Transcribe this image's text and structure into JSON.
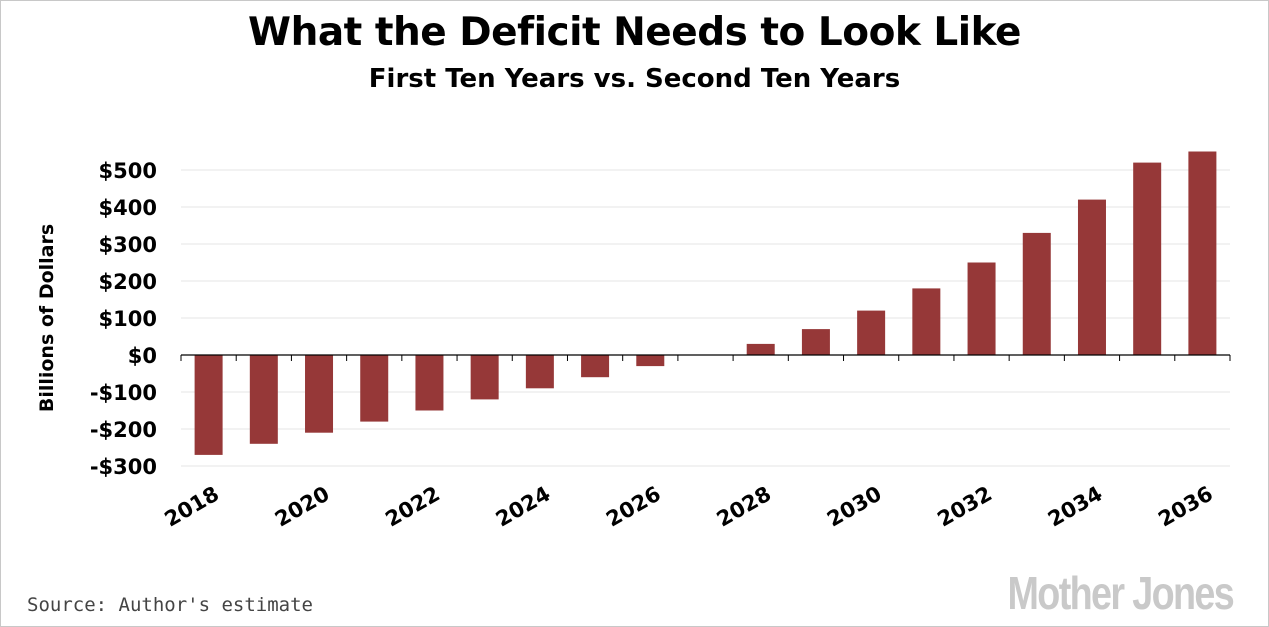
{
  "chart_data": {
    "type": "bar",
    "title": "What the Deficit Needs to Look Like",
    "subtitle": "First Ten Years vs. Second Ten Years",
    "xlabel": "",
    "ylabel": "Billions of Dollars",
    "ylim": [
      -300,
      550
    ],
    "yticks": [
      500,
      400,
      300,
      200,
      100,
      0,
      -100,
      -200,
      -300
    ],
    "ytick_labels": [
      "$500",
      "$400",
      "$300",
      "$200",
      "$100",
      "$0",
      "-$100",
      "-$200",
      "-$300"
    ],
    "xtick_labels": [
      "2018",
      "2020",
      "2022",
      "2024",
      "2026",
      "2028",
      "2030",
      "2032",
      "2034",
      "2036"
    ],
    "categories": [
      "2018",
      "2019",
      "2020",
      "2021",
      "2022",
      "2023",
      "2024",
      "2025",
      "2026",
      "2027",
      "2028",
      "2029",
      "2030",
      "2031",
      "2032",
      "2033",
      "2034",
      "2035",
      "2036"
    ],
    "values": [
      -270,
      -240,
      -210,
      -180,
      -150,
      -120,
      -90,
      -60,
      -30,
      0,
      30,
      70,
      120,
      180,
      250,
      330,
      420,
      520,
      550
    ],
    "bar_color": "#963838",
    "grid": true
  },
  "footer": {
    "source": "Source: Author's estimate",
    "logo": "Mother Jones"
  }
}
